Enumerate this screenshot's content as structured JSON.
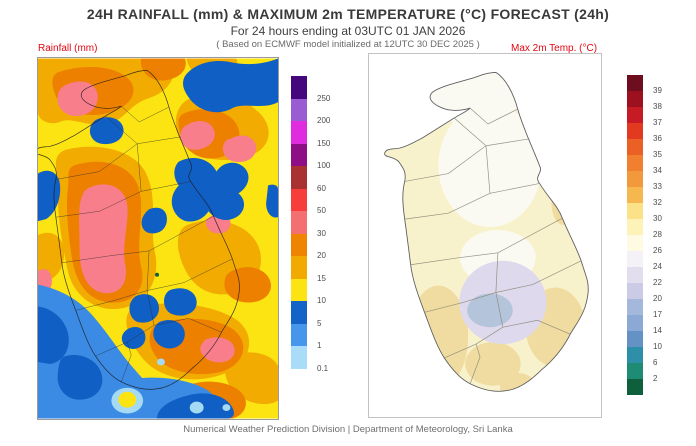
{
  "header": {
    "title": "24H RAINFALL (mm) & MAXIMUM 2m TEMPERATURE (°C) FORECAST (24h)",
    "subtitle": "For 24 hours ending at 03UTC 01 JAN 2026",
    "model_note": "( Based on ECMWF model initialized at 12UTC 30 DEC 2025 )"
  },
  "panels": {
    "rainfall": {
      "label": "Rainfall (mm)"
    },
    "temperature": {
      "label": "Max 2m Temp. (°C)"
    }
  },
  "footer": {
    "caption": "Numerical Weather Prediction Division | Department of Meteorology, Sri Lanka"
  },
  "rainfall_legend": {
    "labels": [
      "250",
      "200",
      "150",
      "100",
      "60",
      "50",
      "30",
      "20",
      "15",
      "10",
      "5",
      "1",
      "0.1"
    ],
    "colors": [
      "#45077B",
      "#9A5CD0",
      "#DF2CDF",
      "#8E0E86",
      "#A93131",
      "#F73C3C",
      "#F47070",
      "#EE8400",
      "#F2A900",
      "#FBE412",
      "#1464C8",
      "#4696EC",
      "#A8DCF8"
    ]
  },
  "temp_legend": {
    "labels": [
      "39",
      "38",
      "37",
      "36",
      "35",
      "34",
      "33",
      "32",
      "30",
      "28",
      "26",
      "24",
      "22",
      "20",
      "17",
      "14",
      "10",
      "6",
      "2"
    ],
    "colors": [
      "#6E0D1E",
      "#9C1020",
      "#C61A24",
      "#E23A20",
      "#EB6125",
      "#F08030",
      "#F2993D",
      "#F6B84E",
      "#FBE289",
      "#FDF2B8",
      "#FEFBE2",
      "#F4F2F6",
      "#E2DEED",
      "#CCCBE6",
      "#A4B8DC",
      "#8CA8D4",
      "#6592C4",
      "#2E8FA8",
      "#1E8C74",
      "#0E5F3C"
    ]
  },
  "chart_data": [
    {
      "type": "heatmap",
      "title": "24H Rainfall (mm) forecast, Sri Lanka",
      "legend_position": "right of map",
      "scale_values_mm": [
        250,
        200,
        150,
        100,
        60,
        50,
        30,
        20,
        15,
        10,
        5,
        1,
        0.1
      ],
      "scale_colors_top_to_bottom": [
        "#45077B",
        "#9A5CD0",
        "#DF2CDF",
        "#8E0E86",
        "#A93131",
        "#F73C3C",
        "#F47070",
        "#EE8400",
        "#F2A900",
        "#FBE412",
        "#1464C8",
        "#4696EC",
        "#A8DCF8"
      ],
      "map_summary": "Filled contour field dominated by yellow (10-15 mm) and orange (20-30 mm); pink cores (30-50 mm) over west-central interior, northwest and east; deep blue patches (5-10 mm) northeast, east-central and along the southwest ocean; light blue spots (below 1 mm) in the far south"
    },
    {
      "type": "heatmap",
      "title": "Maximum 2m Temperature (°C) forecast, Sri Lanka",
      "legend_position": "right of map",
      "scale_values_c": [
        39,
        38,
        37,
        36,
        35,
        34,
        33,
        32,
        30,
        28,
        26,
        24,
        22,
        20,
        17,
        14,
        10,
        6,
        2
      ],
      "scale_colors_top_to_bottom": [
        "#6E0D1E",
        "#9C1020",
        "#C61A24",
        "#E23A20",
        "#EB6125",
        "#F08030",
        "#F2993D",
        "#F6B84E",
        "#FBE289",
        "#FDF2B8",
        "#FEFBE2",
        "#F4F2F6",
        "#E2DEED",
        "#CCCBE6",
        "#A4B8DC",
        "#8CA8D4",
        "#6592C4",
        "#2E8FA8",
        "#1E8C74",
        "#0E5F3C"
      ],
      "map_summary": "Island mostly pale yellow (28-30 C) with near-white areas (26-28 C) in the north-central interior; warmer tan patches (30-32 C) along southwest, south and southeast coasts; cooler lavender region with blue-grey core (17-24 C) over the south-central hill country"
    }
  ]
}
